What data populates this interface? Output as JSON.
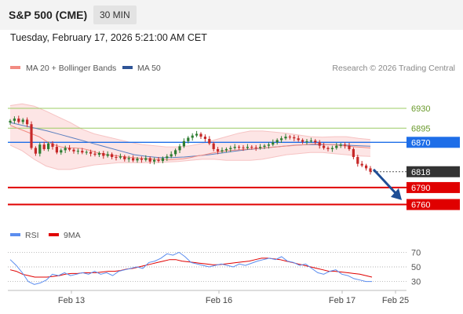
{
  "header": {
    "symbol": "S&P 500 (CME)",
    "timeframe": "30 MIN"
  },
  "timestamp": "Tuesday, February 17, 2026 5:21:00 AM CET",
  "legend": [
    {
      "label": "MA 20 + Bollinger Bands",
      "color": "#f28b82"
    },
    {
      "label": "MA 50",
      "color": "#2f5597"
    }
  ],
  "copyright": "Research © 2026 Trading Central",
  "colors": {
    "up_candle": "#2e7d32",
    "down_candle": "#c62828",
    "band_fill": "#fde0e0",
    "ma20": "#f28b82",
    "ma50": "#5b7fbf",
    "resistance": "#9ccc65",
    "support": "#e00000",
    "pivot": "#1e6ee8",
    "last": "#333333",
    "rsi": "#5b8def",
    "rsi_ma": "#e00000",
    "arrow": "#1f4e96"
  },
  "chart_data": [
    {
      "type": "candlestick",
      "title": "S&P 500 (CME)",
      "ylim": [
        6733,
        6962
      ],
      "x_ticks": [
        "Feb 13",
        "Feb 16",
        "Feb 17",
        "Feb 25"
      ],
      "levels": [
        {
          "value": 6930,
          "label": "6930",
          "kind": "resistance"
        },
        {
          "value": 6895,
          "label": "6895",
          "kind": "resistance"
        },
        {
          "value": 6870,
          "label": "6870",
          "kind": "pivot"
        },
        {
          "value": 6818,
          "label": "6818",
          "kind": "last"
        },
        {
          "value": 6790,
          "label": "6790",
          "kind": "support"
        },
        {
          "value": 6760,
          "label": "6760",
          "kind": "support"
        }
      ],
      "close": [
        6908,
        6912,
        6906,
        6910,
        6902,
        6860,
        6850,
        6866,
        6858,
        6868,
        6862,
        6852,
        6856,
        6860,
        6857,
        6854,
        6855,
        6852,
        6853,
        6850,
        6848,
        6851,
        6846,
        6849,
        6844,
        6843,
        6845,
        6840,
        6842,
        6838,
        6841,
        6839,
        6842,
        6836,
        6839,
        6837,
        6842,
        6845,
        6849,
        6856,
        6863,
        6872,
        6878,
        6882,
        6885,
        6880,
        6876,
        6868,
        6858,
        6854,
        6856,
        6858,
        6860,
        6862,
        6861,
        6860,
        6862,
        6861,
        6860,
        6862,
        6864,
        6866,
        6870,
        6874,
        6877,
        6880,
        6879,
        6877,
        6874,
        6871,
        6872,
        6873,
        6870,
        6864,
        6860,
        6858,
        6860,
        6864,
        6866,
        6864,
        6858,
        6844,
        6832,
        6829,
        6824,
        6818
      ],
      "series": [
        {
          "name": "MA 20",
          "values": [
            6900,
            6895,
            6890,
            6885,
            6880,
            6872,
            6866,
            6862,
            6860,
            6860,
            6859,
            6856,
            6852,
            6849,
            6847,
            6846,
            6844,
            6843,
            6842,
            6841,
            6840,
            6840,
            6839,
            6840,
            6841,
            6843,
            6846,
            6848,
            6851,
            6853,
            6855,
            6856,
            6857,
            6858,
            6859,
            6860,
            6861,
            6862,
            6863,
            6864,
            6865,
            6866,
            6867,
            6867,
            6866,
            6866,
            6864,
            6863,
            6862,
            6861,
            6860
          ]
        },
        {
          "name": "MA 50",
          "values": [
            6905,
            6900,
            6895,
            6890,
            6884,
            6878,
            6872,
            6866,
            6860,
            6854,
            6848,
            6845,
            6843,
            6843,
            6844,
            6846,
            6848,
            6851,
            6854,
            6857,
            6859,
            6861,
            6863,
            6865,
            6866,
            6866,
            6866,
            6865,
            6864,
            6863
          ]
        },
        {
          "name": "Bollinger upper",
          "values": [
            6935,
            6938,
            6934,
            6925,
            6915,
            6905,
            6893,
            6885,
            6880,
            6875,
            6870,
            6866,
            6864,
            6862,
            6862,
            6864,
            6868,
            6874,
            6880,
            6886,
            6890,
            6890,
            6888,
            6886,
            6883,
            6880,
            6879,
            6880,
            6880,
            6877,
            6875
          ]
        },
        {
          "name": "Bollinger lower",
          "values": [
            6865,
            6855,
            6840,
            6828,
            6822,
            6822,
            6826,
            6830,
            6832,
            6834,
            6834,
            6834,
            6834,
            6835,
            6836,
            6838,
            6840,
            6840,
            6838,
            6838,
            6838,
            6840,
            6844,
            6848,
            6850,
            6852,
            6852,
            6850,
            6848,
            6846,
            6845
          ]
        }
      ]
    },
    {
      "type": "line",
      "title": "RSI",
      "ylim": [
        22,
        78
      ],
      "y_ticks": [
        30,
        50,
        70
      ],
      "series": [
        {
          "name": "RSI",
          "values": [
            60,
            52,
            42,
            30,
            26,
            28,
            32,
            40,
            38,
            42,
            38,
            40,
            42,
            40,
            44,
            40,
            42,
            38,
            44,
            46,
            48,
            50,
            48,
            56,
            58,
            62,
            68,
            66,
            70,
            64,
            56,
            54,
            52,
            50,
            52,
            54,
            52,
            50,
            54,
            52,
            55,
            58,
            60,
            62,
            60,
            64,
            58,
            56,
            52,
            54,
            48,
            42,
            40,
            44,
            46,
            40,
            38,
            34,
            32,
            30,
            30
          ]
        },
        {
          "name": "9MA",
          "values": [
            46,
            44,
            40,
            38,
            36,
            36,
            36,
            37,
            38,
            40,
            41,
            41,
            42,
            42,
            42,
            43,
            44,
            44,
            45,
            47,
            48,
            50,
            52,
            54,
            56,
            58,
            60,
            60,
            58,
            57,
            56,
            55,
            54,
            53,
            53,
            54,
            55,
            56,
            57,
            58,
            60,
            62,
            62,
            61,
            60,
            58,
            56,
            54,
            52,
            50,
            48,
            46,
            44,
            44,
            43,
            42,
            41,
            40,
            38,
            36
          ]
        }
      ]
    }
  ]
}
